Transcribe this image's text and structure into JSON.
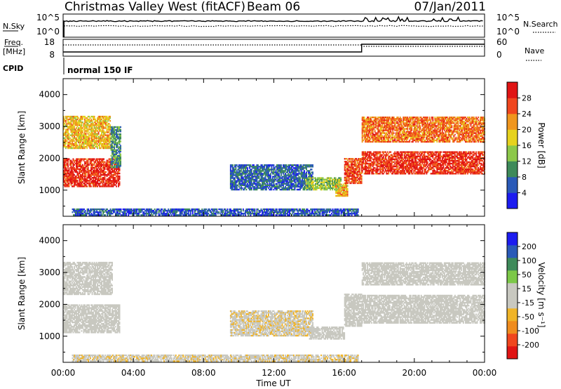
{
  "header": {
    "station": "Christmas Valley West (fitACF)",
    "beam": "Beam 06",
    "date": "07/Jan/2011"
  },
  "strip_labels": {
    "nsky": "N.Sky",
    "nsky_top": "10^5",
    "nsky_bottom": "10^0",
    "nsearch": "N.Search",
    "nsearch_top": "10^5",
    "nsearch_bottom": "10^0",
    "freq_line1": "Freq.",
    "freq_line2": "[MHz]",
    "freq_top": "18",
    "freq_bottom": "8",
    "nave": "Nave",
    "nave_top": "60",
    "nave_bottom": "0",
    "cpid": "CPID",
    "cpid_value": "normal 150 IF"
  },
  "x_axis": {
    "label": "Time UT",
    "ticks": [
      "00:00",
      "04:00",
      "08:00",
      "12:00",
      "16:00",
      "20:00",
      "00:00"
    ]
  },
  "colors": {
    "power": [
      "#1c1cf0",
      "#2a5ab8",
      "#3e8a5a",
      "#8cc84a",
      "#e6d21e",
      "#f0961e",
      "#f0461e",
      "#e01414"
    ],
    "velocity": [
      "#e01414",
      "#f0461e",
      "#f08c1e",
      "#f0b428",
      "#c8c8c0",
      "#c8c8c0",
      "#7cc848",
      "#3e8a5a",
      "#2a5ab8",
      "#1c1cf0"
    ]
  },
  "chart_data": [
    {
      "type": "heatmap",
      "name": "power",
      "xlabel": "Time UT",
      "ylabel": "Slant Range [km]",
      "x_range_hours": [
        0,
        24
      ],
      "ylim": [
        180,
        4500
      ],
      "yticks": [
        "1000",
        "2000",
        "3000",
        "4000"
      ],
      "colorbar": {
        "label": "Power [dB]",
        "tick_labels": [
          "4",
          "8",
          "12",
          "16",
          "20",
          "24",
          "28"
        ],
        "range": [
          0,
          32
        ]
      },
      "regions": [
        {
          "t0": 0.0,
          "t1": 3.2,
          "r0": 1100,
          "r1": 2000,
          "value": 28
        },
        {
          "t0": 0.0,
          "t1": 2.7,
          "r0": 2300,
          "r1": 3300,
          "value": 20
        },
        {
          "t0": 2.7,
          "t1": 3.3,
          "r0": 1700,
          "r1": 3000,
          "value": 10
        },
        {
          "t0": 9.5,
          "t1": 14.2,
          "r0": 1000,
          "r1": 1800,
          "value": 7
        },
        {
          "t0": 13.8,
          "t1": 15.8,
          "r0": 1000,
          "r1": 1400,
          "value": 14
        },
        {
          "t0": 15.5,
          "t1": 16.2,
          "r0": 800,
          "r1": 1200,
          "value": 20
        },
        {
          "t0": 0.5,
          "t1": 16.8,
          "r0": 200,
          "r1": 400,
          "value": 6
        },
        {
          "t0": 16.0,
          "t1": 17.0,
          "r0": 1200,
          "r1": 2000,
          "value": 26
        },
        {
          "t0": 17.0,
          "t1": 24.0,
          "r0": 1500,
          "r1": 2200,
          "value": 28
        },
        {
          "t0": 17.0,
          "t1": 24.0,
          "r0": 2500,
          "r1": 3300,
          "value": 24
        }
      ]
    },
    {
      "type": "heatmap",
      "name": "velocity",
      "xlabel": "Time UT",
      "ylabel": "Slant Range [km]",
      "x_range_hours": [
        0,
        24
      ],
      "ylim": [
        180,
        4500
      ],
      "yticks": [
        "1000",
        "2000",
        "3000",
        "4000"
      ],
      "colorbar": {
        "label": "Velocity [m s⁻¹]",
        "tick_labels": [
          "-200",
          "-100",
          "-50",
          "-15",
          "15",
          "50",
          "100",
          "200"
        ],
        "range": [
          -250,
          250
        ]
      },
      "regions": [
        {
          "t0": 0.0,
          "t1": 3.2,
          "r0": 1100,
          "r1": 2000,
          "value": 0
        },
        {
          "t0": 0.0,
          "t1": 2.8,
          "r0": 2300,
          "r1": 3300,
          "value": 5
        },
        {
          "t0": 9.5,
          "t1": 14.2,
          "r0": 1000,
          "r1": 1800,
          "value": -40
        },
        {
          "t0": 14.0,
          "t1": 16.0,
          "r0": 900,
          "r1": 1300,
          "value": 0
        },
        {
          "t0": 0.5,
          "t1": 16.8,
          "r0": 200,
          "r1": 400,
          "value": -40
        },
        {
          "t0": 16.0,
          "t1": 17.0,
          "r0": 1300,
          "r1": 2300,
          "value": 30
        },
        {
          "t0": 17.0,
          "t1": 24.0,
          "r0": 1400,
          "r1": 2300,
          "value": 0
        },
        {
          "t0": 17.0,
          "t1": 24.0,
          "r0": 2600,
          "r1": 3300,
          "value": 0
        }
      ]
    }
  ]
}
